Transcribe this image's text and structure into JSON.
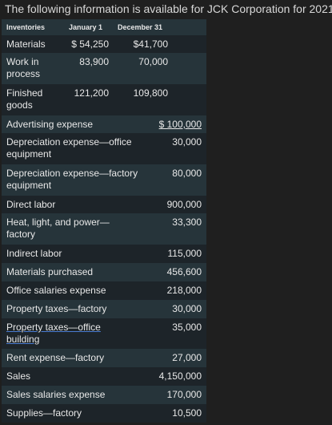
{
  "heading": "The following information is available for JCK Corporation for 2021:",
  "inventories": {
    "header": {
      "label": "Inventories",
      "col1": "January 1",
      "col2": "December 31"
    },
    "rows": [
      {
        "label": "Materials",
        "jan": "$ 54,250",
        "dec": "$41,700"
      },
      {
        "label": "Work in process",
        "jan": "83,900",
        "dec": "70,000"
      },
      {
        "label": "Finished goods",
        "jan": "121,200",
        "dec": "109,800"
      }
    ]
  },
  "items": [
    {
      "label": "Advertising expense",
      "amount": "$ 100,000"
    },
    {
      "label": "Depreciation expense—office equipment",
      "amount": "30,000"
    },
    {
      "label": "Depreciation expense—factory equipment",
      "amount": "80,000"
    },
    {
      "label": "Direct labor",
      "amount": "900,000"
    },
    {
      "label": "Heat, light, and power—factory",
      "amount": "33,300"
    },
    {
      "label": "Indirect labor",
      "amount": "115,000"
    },
    {
      "label": "Materials purchased",
      "amount": "456,600"
    },
    {
      "label": "Office salaries expense",
      "amount": "218,000"
    },
    {
      "label": "Property taxes—factory",
      "amount": "30,000"
    },
    {
      "label": "Property taxes—office building",
      "amount": "35,000"
    },
    {
      "label": "Rent expense—factory",
      "amount": "27,000"
    },
    {
      "label": "Sales",
      "amount": "4,150,000"
    },
    {
      "label": "Sales salaries expense",
      "amount": "170,000"
    },
    {
      "label": "Supplies—factory",
      "amount": "10,500"
    }
  ]
}
